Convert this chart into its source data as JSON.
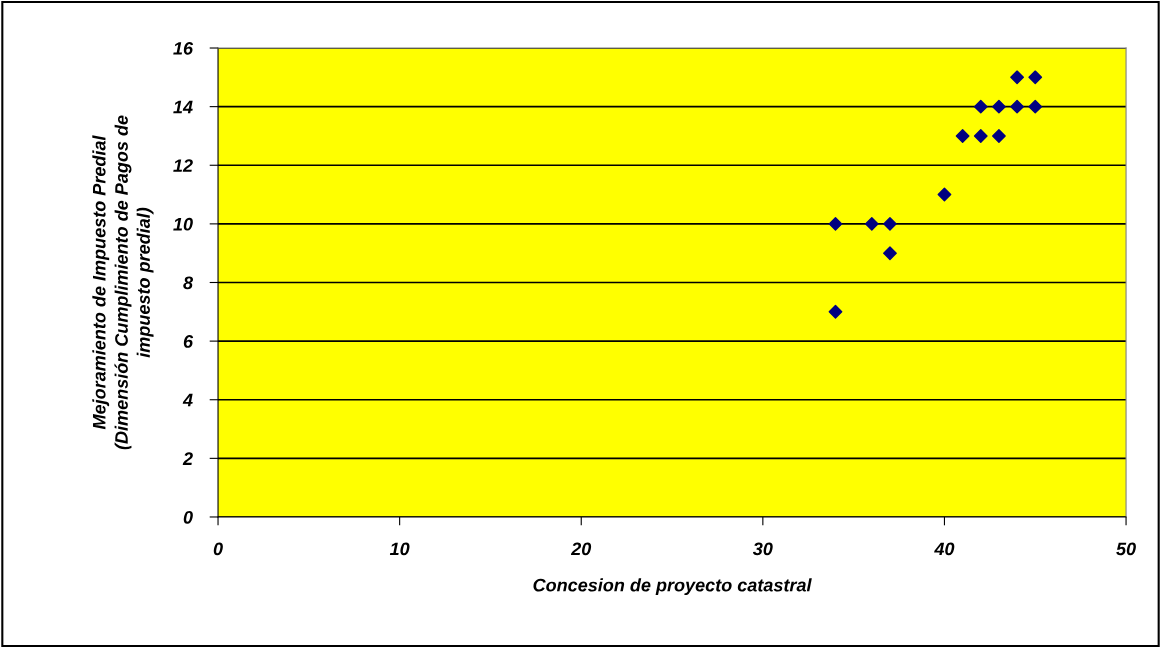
{
  "chart_data": {
    "type": "scatter",
    "xlabel": "Concesion de proyecto catastral",
    "ylabel": "Mejoramiento de Impuesto Predial\n(Dimensión Cumplimiento de Pagos de\nimpuesto predial)",
    "x": [
      34,
      34,
      36,
      37,
      37,
      40,
      41,
      42,
      42,
      43,
      43,
      44,
      44,
      45,
      45
    ],
    "series": [
      {
        "color": "#000080",
        "values": [
          10,
          7,
          10,
          10,
          9,
          11,
          13,
          14,
          13,
          14,
          13,
          15,
          14,
          15,
          14
        ]
      }
    ],
    "xlim": [
      0,
      50
    ],
    "xticks": [
      0,
      10,
      20,
      30,
      40,
      50
    ],
    "ylim": [
      0,
      16
    ],
    "yticks": [
      0,
      2,
      4,
      6,
      8,
      10,
      12,
      14,
      16
    ],
    "grid": "y",
    "marker": "diamond",
    "legend": false
  }
}
